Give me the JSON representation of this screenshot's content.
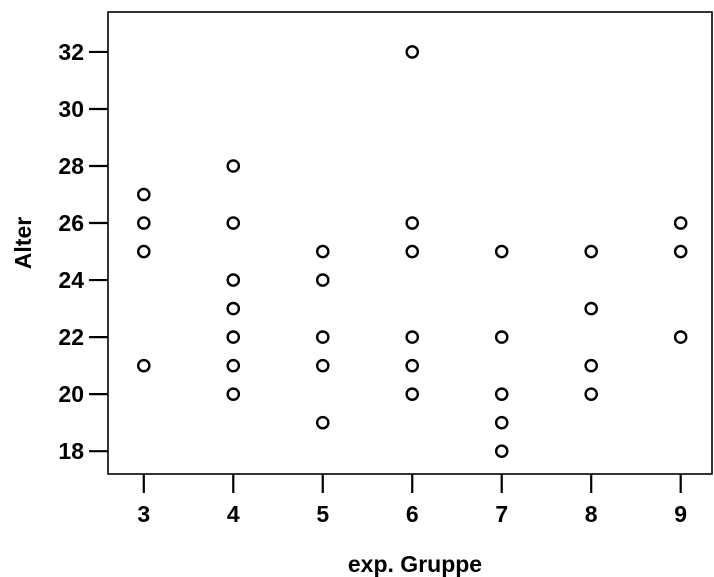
{
  "chart_data": {
    "type": "scatter",
    "xlabel": "exp. Gruppe",
    "ylabel": "Alter",
    "xlim": [
      2.6,
      9.35
    ],
    "ylim": [
      17.2,
      33.4
    ],
    "xticks": [
      3,
      4,
      5,
      6,
      7,
      8,
      9
    ],
    "yticks": [
      18,
      20,
      22,
      24,
      26,
      28,
      30,
      32
    ],
    "grid": false,
    "marker": "open-circle",
    "points": [
      {
        "x": 3,
        "y": 27
      },
      {
        "x": 3,
        "y": 26
      },
      {
        "x": 3,
        "y": 25
      },
      {
        "x": 3,
        "y": 21
      },
      {
        "x": 4,
        "y": 28
      },
      {
        "x": 4,
        "y": 26
      },
      {
        "x": 4,
        "y": 24
      },
      {
        "x": 4,
        "y": 23
      },
      {
        "x": 4,
        "y": 22
      },
      {
        "x": 4,
        "y": 21
      },
      {
        "x": 4,
        "y": 20
      },
      {
        "x": 5,
        "y": 25
      },
      {
        "x": 5,
        "y": 24
      },
      {
        "x": 5,
        "y": 22
      },
      {
        "x": 5,
        "y": 21
      },
      {
        "x": 5,
        "y": 19
      },
      {
        "x": 6,
        "y": 32
      },
      {
        "x": 6,
        "y": 26
      },
      {
        "x": 6,
        "y": 25
      },
      {
        "x": 6,
        "y": 22
      },
      {
        "x": 6,
        "y": 21
      },
      {
        "x": 6,
        "y": 20
      },
      {
        "x": 7,
        "y": 25
      },
      {
        "x": 7,
        "y": 22
      },
      {
        "x": 7,
        "y": 20
      },
      {
        "x": 7,
        "y": 19
      },
      {
        "x": 7,
        "y": 18
      },
      {
        "x": 8,
        "y": 25
      },
      {
        "x": 8,
        "y": 23
      },
      {
        "x": 8,
        "y": 21
      },
      {
        "x": 8,
        "y": 20
      },
      {
        "x": 9,
        "y": 26
      },
      {
        "x": 9,
        "y": 25
      },
      {
        "x": 9,
        "y": 22
      }
    ]
  }
}
